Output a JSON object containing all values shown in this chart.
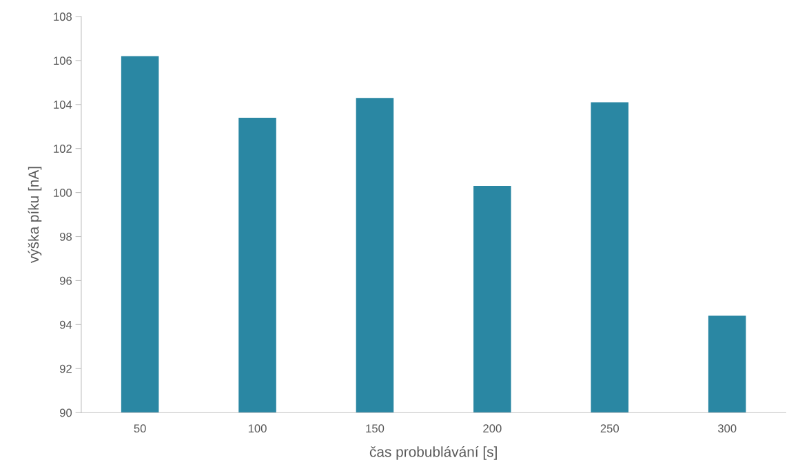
{
  "chart_data": {
    "type": "bar",
    "xlabel": "čas probublávání [s]",
    "ylabel": "výška píku [nA]",
    "categories": [
      "50",
      "100",
      "150",
      "200",
      "250",
      "300"
    ],
    "values": [
      106.2,
      103.4,
      104.3,
      100.3,
      104.1,
      94.4
    ],
    "color": "#2a87a3",
    "ylim": [
      90,
      108
    ],
    "yticks": [
      90,
      92,
      94,
      96,
      98,
      100,
      102,
      104,
      106,
      108
    ],
    "grid": false,
    "legend": false
  }
}
